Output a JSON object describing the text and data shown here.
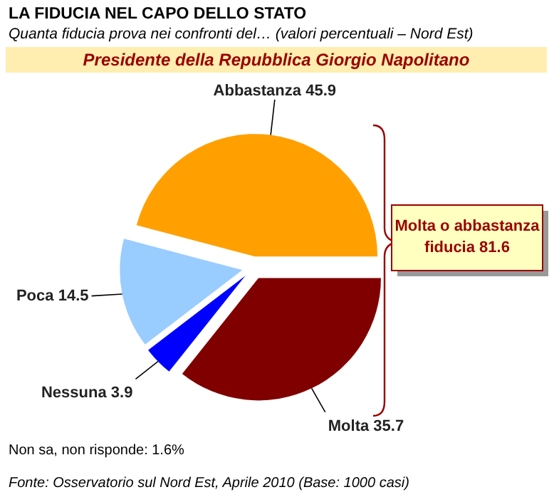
{
  "chart_data": {
    "type": "pie",
    "title": "LA FIDUCIA NEL CAPO DELLO STATO",
    "subtitle": "Quanta fiducia prova nei confronti del… (valori percentuali – Nord Est)",
    "categories": [
      "Abbastanza",
      "Poca",
      "Nessuna",
      "Molta"
    ],
    "values": [
      45.9,
      14.5,
      3.9,
      35.7
    ],
    "colors": [
      "#ffa000",
      "#99ccff",
      "#0000ff",
      "#800000"
    ],
    "data_labels": true,
    "annotations": [
      "Presidente della Repubblica Giorgio Napolitano",
      "Molta o abbastanza\nfiducia 81.6",
      "Non sa, non risponde: 1.6%",
      "Fonte: Osservatorio sul Nord Est, Aprile 2010 (Base: 1000 casi)"
    ]
  }
}
